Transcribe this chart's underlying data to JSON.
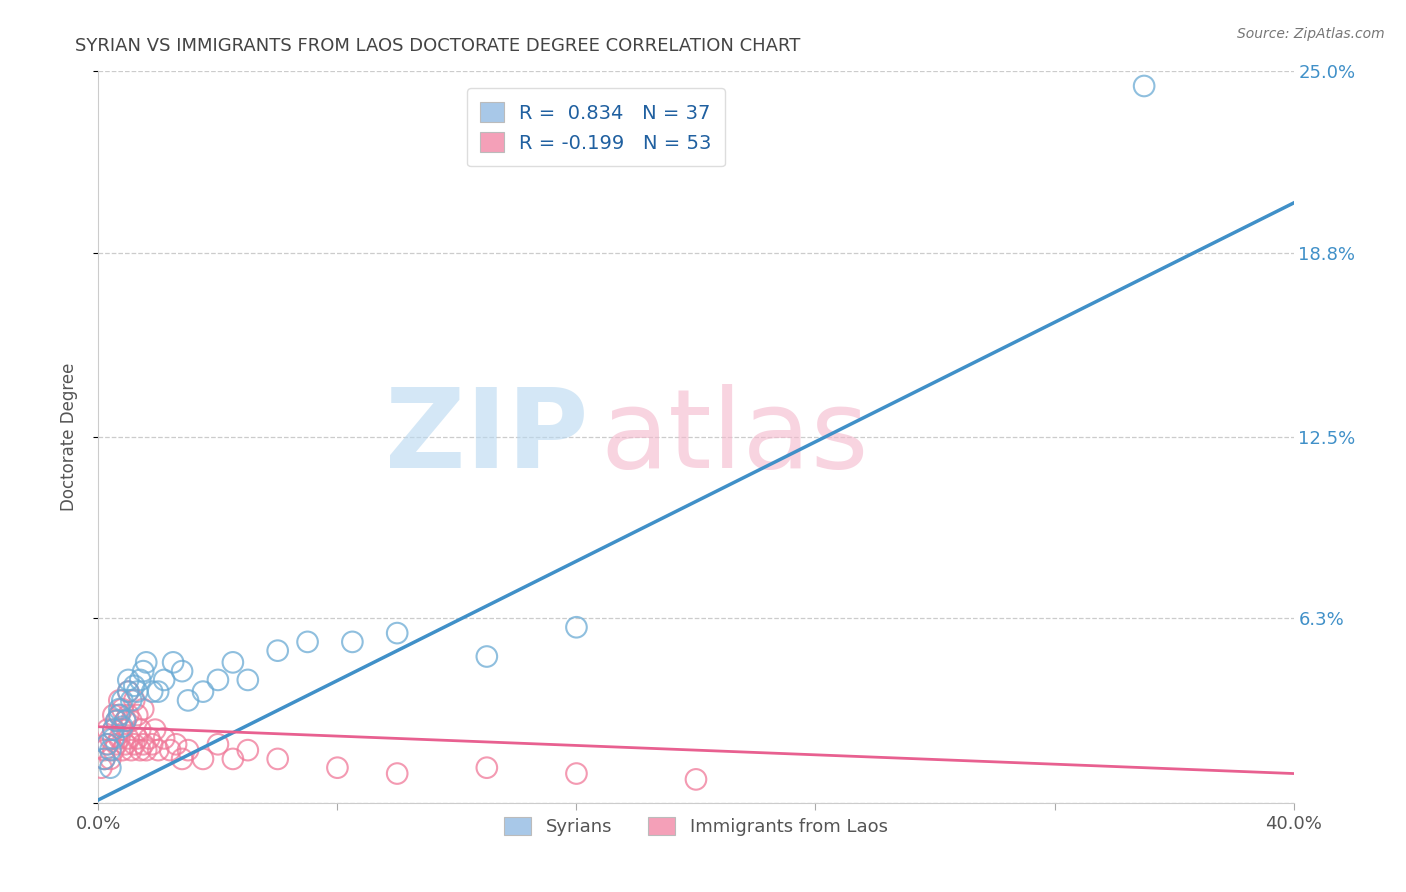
{
  "title": "SYRIAN VS IMMIGRANTS FROM LAOS DOCTORATE DEGREE CORRELATION CHART",
  "source": "Source: ZipAtlas.com",
  "ylabel": "Doctorate Degree",
  "xlim": [
    0.0,
    0.4
  ],
  "ylim": [
    0.0,
    0.25
  ],
  "yticks": [
    0.0,
    0.063,
    0.125,
    0.188,
    0.25
  ],
  "ytick_labels": [
    "",
    "6.3%",
    "12.5%",
    "18.8%",
    "25.0%"
  ],
  "xticks": [
    0.0,
    0.08,
    0.16,
    0.24,
    0.32,
    0.4
  ],
  "blue_R": 0.834,
  "blue_N": 37,
  "pink_R": -0.199,
  "pink_N": 53,
  "blue_color": "#a8c8e8",
  "pink_color": "#f4a0b8",
  "blue_edge_color": "#6aaad4",
  "pink_edge_color": "#f07898",
  "blue_line_color": "#4090c8",
  "pink_line_color": "#e86090",
  "legend_label_blue": "Syrians",
  "legend_label_pink": "Immigrants from Laos",
  "blue_line_x0": 0.0,
  "blue_line_y0": 0.001,
  "blue_line_x1": 0.4,
  "blue_line_y1": 0.205,
  "pink_line_x0": 0.0,
  "pink_line_y0": 0.026,
  "pink_line_x1": 0.4,
  "pink_line_y1": 0.01,
  "blue_scatter_x": [
    0.002,
    0.003,
    0.004,
    0.005,
    0.005,
    0.006,
    0.007,
    0.007,
    0.008,
    0.008,
    0.009,
    0.01,
    0.01,
    0.011,
    0.012,
    0.013,
    0.014,
    0.015,
    0.016,
    0.018,
    0.02,
    0.022,
    0.025,
    0.028,
    0.03,
    0.035,
    0.04,
    0.045,
    0.05,
    0.06,
    0.07,
    0.085,
    0.1,
    0.13,
    0.16,
    0.35,
    0.004
  ],
  "blue_scatter_y": [
    0.015,
    0.02,
    0.018,
    0.022,
    0.025,
    0.028,
    0.03,
    0.032,
    0.026,
    0.035,
    0.028,
    0.038,
    0.042,
    0.035,
    0.04,
    0.038,
    0.042,
    0.045,
    0.048,
    0.038,
    0.038,
    0.042,
    0.048,
    0.045,
    0.035,
    0.038,
    0.042,
    0.048,
    0.042,
    0.052,
    0.055,
    0.055,
    0.058,
    0.05,
    0.06,
    0.245,
    0.012
  ],
  "pink_scatter_x": [
    0.001,
    0.002,
    0.002,
    0.003,
    0.003,
    0.004,
    0.004,
    0.005,
    0.005,
    0.005,
    0.006,
    0.006,
    0.007,
    0.007,
    0.007,
    0.008,
    0.008,
    0.008,
    0.009,
    0.009,
    0.01,
    0.01,
    0.01,
    0.011,
    0.011,
    0.012,
    0.012,
    0.013,
    0.013,
    0.014,
    0.014,
    0.015,
    0.015,
    0.016,
    0.017,
    0.018,
    0.019,
    0.02,
    0.022,
    0.024,
    0.026,
    0.028,
    0.03,
    0.035,
    0.04,
    0.045,
    0.05,
    0.06,
    0.08,
    0.1,
    0.13,
    0.16,
    0.2
  ],
  "pink_scatter_y": [
    0.012,
    0.015,
    0.018,
    0.02,
    0.025,
    0.015,
    0.022,
    0.018,
    0.025,
    0.03,
    0.02,
    0.028,
    0.022,
    0.03,
    0.035,
    0.018,
    0.025,
    0.032,
    0.02,
    0.028,
    0.022,
    0.03,
    0.038,
    0.018,
    0.028,
    0.02,
    0.035,
    0.022,
    0.03,
    0.018,
    0.025,
    0.02,
    0.032,
    0.018,
    0.022,
    0.02,
    0.025,
    0.018,
    0.022,
    0.018,
    0.02,
    0.015,
    0.018,
    0.015,
    0.02,
    0.015,
    0.018,
    0.015,
    0.012,
    0.01,
    0.012,
    0.01,
    0.008
  ]
}
